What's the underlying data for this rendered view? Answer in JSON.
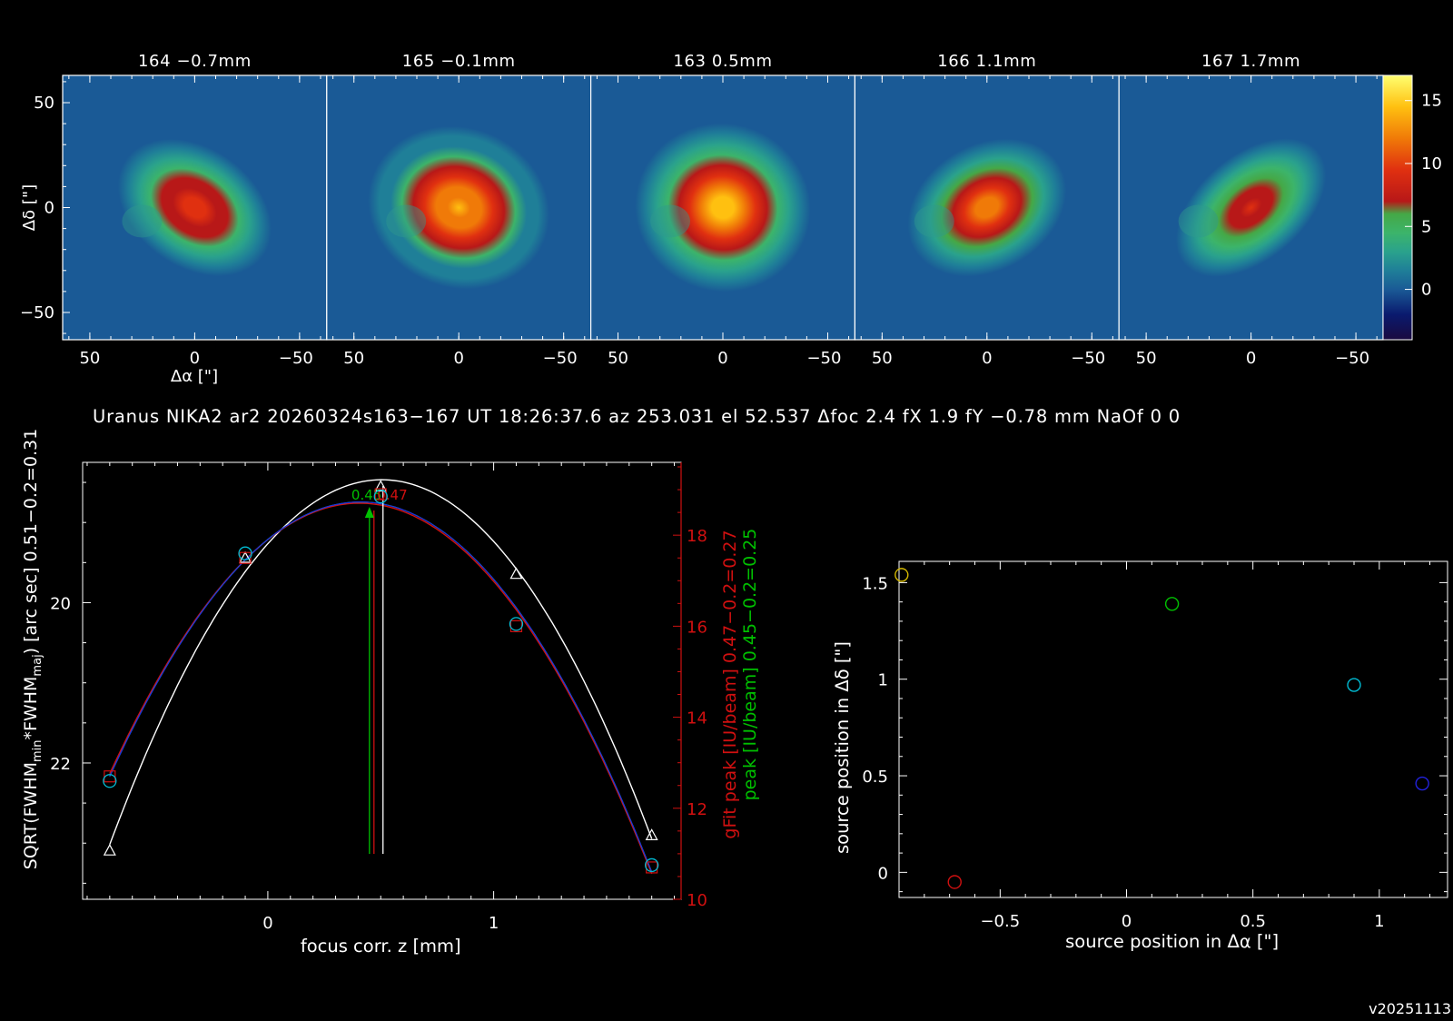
{
  "panels": [
    {
      "title": "164 −0.7mm",
      "peak": 10.5,
      "sx": 24,
      "sy": 17,
      "angle": 35
    },
    {
      "title": "165 −0.1mm",
      "peak": 14.5,
      "sx": 23,
      "sy": 20,
      "angle": 20
    },
    {
      "title": "163 0.5mm",
      "peak": 16.8,
      "sx": 22,
      "sy": 21,
      "angle": 15
    },
    {
      "title": "166 1.1mm",
      "peak": 13.5,
      "sx": 24,
      "sy": 18,
      "angle": -30
    },
    {
      "title": "167 1.7mm",
      "peak": 9.5,
      "sx": 25,
      "sy": 15,
      "angle": -40
    }
  ],
  "map_axes": {
    "xlabel": "Δα [\"]",
    "ylabel": "Δδ [\"]",
    "xticks": [
      "50",
      "0",
      "−50"
    ],
    "yticks": [
      "50",
      "0",
      "−50"
    ]
  },
  "colorbar": {
    "ticks": [
      "15",
      "10",
      "5",
      "0"
    ],
    "vmin": -4,
    "vmax": 17
  },
  "info_line": "Uranus NIKA2 ar2 20260324s163−167 UT 18:26:37.6 az 253.031 el 52.537 Δfoc 2.4 fX 1.9 fY −0.78 mm NaOf 0 0",
  "version": "v20251113",
  "colors": {
    "red": "#d01010",
    "green": "#00c000",
    "cyan": "#00bcd4",
    "blue": "#2222dd",
    "yellow": "#d4b800",
    "white": "#ffffff"
  },
  "chart_data": [
    {
      "type": "line",
      "title": "",
      "xlabel": "focus corr. z [mm]",
      "ylabel": "SQRT(FWHM_min*FWHM_maj) [arc sec] 0.51−0.2=0.31",
      "ylabel_parts": {
        "a": "SQRT(FWHM",
        "b": "min",
        "c": "*FWHM",
        "d": "maj",
        "e": ") [arc sec] 0.51−0.2=0.31"
      },
      "y2label_red": "gFit peak [IU/beam] 0.47−0.2=0.27",
      "y2label_green": "peak [IU/beam] 0.45−0.2=0.25",
      "xlim": [
        -0.82,
        1.83
      ],
      "ylim": [
        23.7,
        18.25
      ],
      "y2lim": [
        10,
        19.6
      ],
      "xticks": [
        "0",
        "1"
      ],
      "yticks": [
        "20",
        "22"
      ],
      "y2ticks": [
        "10",
        "12",
        "14",
        "16",
        "18"
      ],
      "x": [
        -0.7,
        -0.1,
        0.5,
        1.1,
        1.7
      ],
      "series": [
        {
          "y": [
            23.09,
            19.44,
            18.55,
            19.64,
            22.9
          ],
          "marker": "triangle"
        },
        {
          "y": [
            12.7,
            17.5,
            18.9,
            16.0,
            10.7
          ],
          "marker": "square",
          "axis": "y2"
        },
        {
          "y": [
            12.6,
            17.6,
            18.85,
            16.05,
            10.75
          ],
          "marker": "circle",
          "axis": "y2"
        }
      ],
      "optima": [
        {
          "x": 0.51,
          "label": "0.47"
        },
        {
          "x": 0.47
        },
        {
          "x": 0.45
        }
      ],
      "arrow_label": "0.45"
    },
    {
      "type": "scatter",
      "title": "",
      "xlabel": "source position in Δα [\"]",
      "ylabel": "source position in Δδ [\"]",
      "xlim": [
        -0.9,
        1.27
      ],
      "ylim": [
        -0.13,
        1.61
      ],
      "xticks": [
        "−0.5",
        "0",
        "0.5",
        "1"
      ],
      "yticks": [
        "0",
        "0.5",
        "1",
        "1.5"
      ],
      "points": [
        {
          "x": -0.89,
          "y": 1.54,
          "color": "yellow"
        },
        {
          "x": -0.68,
          "y": -0.05,
          "color": "red"
        },
        {
          "x": 0.18,
          "y": 1.39,
          "color": "green"
        },
        {
          "x": 0.9,
          "y": 0.97,
          "color": "cyan"
        },
        {
          "x": 1.17,
          "y": 0.46,
          "color": "blue"
        }
      ]
    }
  ]
}
